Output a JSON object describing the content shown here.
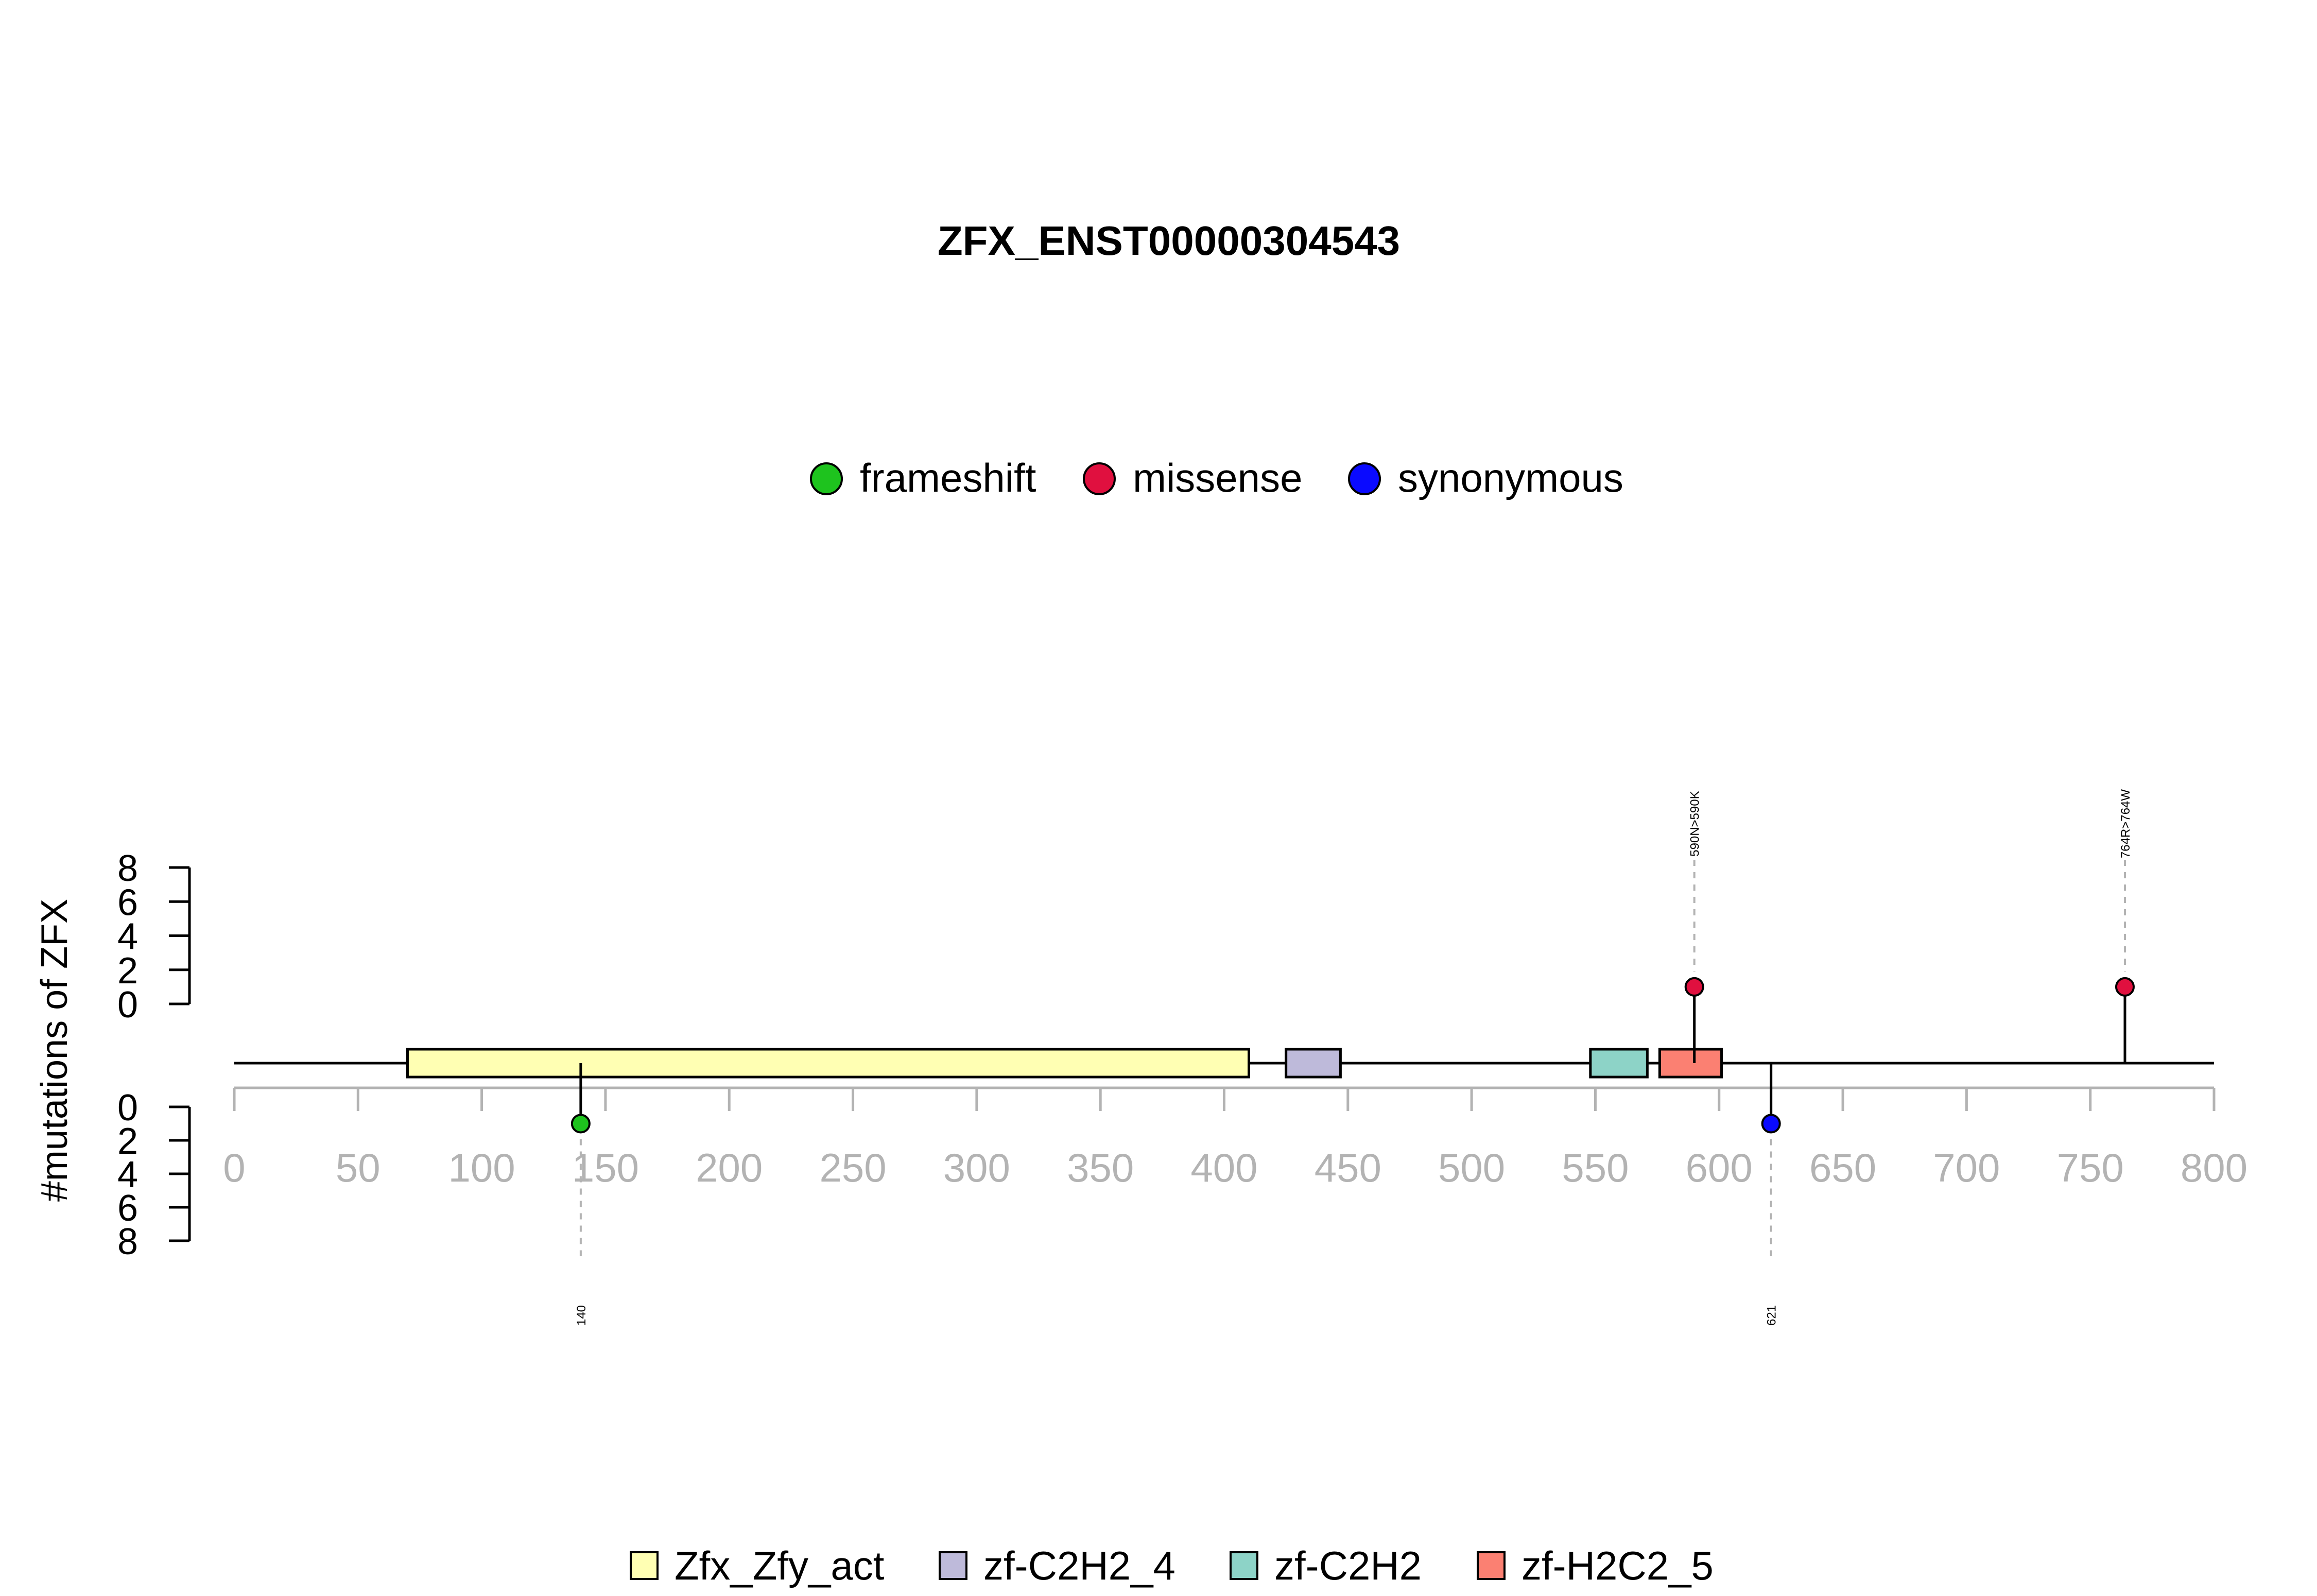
{
  "chart_data": {
    "type": "lollipop",
    "title": "ZFX_ENST00000304543",
    "ylabel": "#mutations of ZFX",
    "xlim": [
      0,
      800
    ],
    "x_ticks": [
      0,
      50,
      100,
      150,
      200,
      250,
      300,
      350,
      400,
      450,
      500,
      550,
      600,
      650,
      700,
      750,
      800
    ],
    "y_ticks": [
      0,
      2,
      4,
      6,
      8
    ],
    "ylim": [
      0,
      8
    ],
    "mutation_legend": [
      {
        "name": "frameshift",
        "color": "#1ec31e"
      },
      {
        "name": "missense",
        "color": "#e0103f"
      },
      {
        "name": "synonymous",
        "color": "#0a0aff"
      }
    ],
    "domains": [
      {
        "name": "Zfx_Zfy_act",
        "start": 70,
        "end": 410,
        "color": "#ffffb3"
      },
      {
        "name": "zf-C2H2_4",
        "start": 425,
        "end": 447,
        "color": "#bebada"
      },
      {
        "name": "zf-C2H2",
        "start": 548,
        "end": 571,
        "color": "#8dd3c7"
      },
      {
        "name": "zf-H2C2_5",
        "start": 576,
        "end": 601,
        "color": "#fb8072"
      }
    ],
    "domain_legend": [
      "Zfx_Zfy_act",
      "zf-C2H2_4",
      "zf-C2H2",
      "zf-H2C2_5"
    ],
    "mutations": [
      {
        "position": 140,
        "count": 1,
        "type": "frameshift",
        "side": "bottom",
        "label": "140"
      },
      {
        "position": 590,
        "count": 1,
        "type": "missense",
        "side": "top",
        "label": "590N>590K"
      },
      {
        "position": 621,
        "count": 1,
        "type": "synonymous",
        "side": "bottom",
        "label": "621"
      },
      {
        "position": 764,
        "count": 1,
        "type": "missense",
        "side": "top",
        "label": "764R>764W"
      }
    ]
  }
}
